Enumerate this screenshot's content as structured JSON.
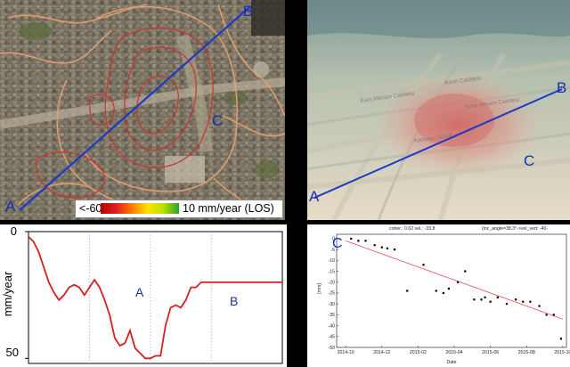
{
  "map_panel": {
    "label_a": "A",
    "label_b": "B",
    "label_c": "C",
    "legend_min": "<-60",
    "legend_max": "10 mm/year (LOS)"
  },
  "perspective_panel": {
    "label_a": "A",
    "label_b": "B",
    "label_c": "C"
  },
  "profile_chart": {
    "ylabel": "mm/year",
    "ytick_top": "0",
    "ytick_bottom": "50",
    "label_a": "A",
    "label_b": "B"
  },
  "timeseries_chart": {
    "label_c": "C",
    "header_left": "coher.: 0.62 vel.: -33.8",
    "header_right": "(inc_angle=38.3°->vel_vert: -40-",
    "ylabel": "[mm]",
    "xlabel": "Date",
    "yticks": [
      "0",
      "-5",
      "-10",
      "-15",
      "-20",
      "-25",
      "-30",
      "-35",
      "-40",
      "-45",
      "-50"
    ],
    "xticks": [
      "2014-10",
      "2014-12",
      "2015-02",
      "2015-04",
      "2015-06",
      "2015-08",
      "2015-10"
    ]
  },
  "chart_data": [
    {
      "type": "line",
      "title": "",
      "xlabel": "",
      "ylabel": "mm/year",
      "ylim": [
        0,
        52
      ],
      "y_inverted": true,
      "series": [
        {
          "color": "#d42020",
          "x": [
            0,
            2,
            4,
            6,
            8,
            10,
            12,
            14,
            16,
            18,
            20,
            22,
            24,
            26,
            28,
            30,
            32,
            34,
            36,
            38,
            40,
            42,
            44,
            46,
            48,
            50,
            52,
            54,
            56,
            58,
            60,
            62,
            64,
            66,
            68,
            70,
            72,
            74,
            76,
            78,
            80,
            82,
            84,
            86,
            88,
            90,
            92,
            94,
            96,
            98,
            100
          ],
          "values": [
            2,
            4,
            8,
            14,
            20,
            24,
            27,
            25,
            22,
            21,
            22,
            25,
            22,
            19,
            22,
            27,
            33,
            42,
            45,
            44,
            39,
            46,
            48,
            50,
            50,
            49,
            49,
            37,
            30,
            29,
            30,
            27,
            22,
            22,
            20,
            20,
            20,
            20,
            20,
            20,
            20,
            20,
            20,
            20,
            20,
            20,
            20,
            20,
            20,
            20,
            20
          ]
        }
      ]
    },
    {
      "type": "scatter",
      "title": "",
      "xlabel": "Date",
      "ylabel": "[mm]",
      "ylim": [
        -50,
        0
      ],
      "series": [
        {
          "name": "",
          "color": "#000000",
          "x": [
            0.3,
            0.7,
            1.1,
            1.6,
            2.0,
            2.3,
            2.7,
            3.4,
            4.3,
            5.0,
            5.4,
            5.7,
            6.2,
            6.6,
            7.1,
            7.5,
            7.7,
            8.0,
            8.4,
            8.9,
            9.4,
            9.8,
            10.2,
            10.7,
            11.1,
            11.5,
            11.9
          ],
          "values": [
            0,
            -1,
            -1,
            -3,
            -4,
            -4.5,
            -5,
            -24,
            -12,
            -24,
            -25,
            -23,
            -20,
            -15,
            -28,
            -28,
            -27,
            -29,
            -27,
            -30,
            -28,
            -29,
            -29,
            -31,
            -35,
            -35,
            -46
          ]
        },
        {
          "name": "",
          "color": "#e05050",
          "x": [
            0,
            12
          ],
          "values": [
            -1,
            -37
          ]
        }
      ],
      "x_ticks": [
        "2014-10",
        "2014-12",
        "2015-02",
        "2015-04",
        "2015-06",
        "2015-08",
        "2015-10"
      ]
    }
  ]
}
